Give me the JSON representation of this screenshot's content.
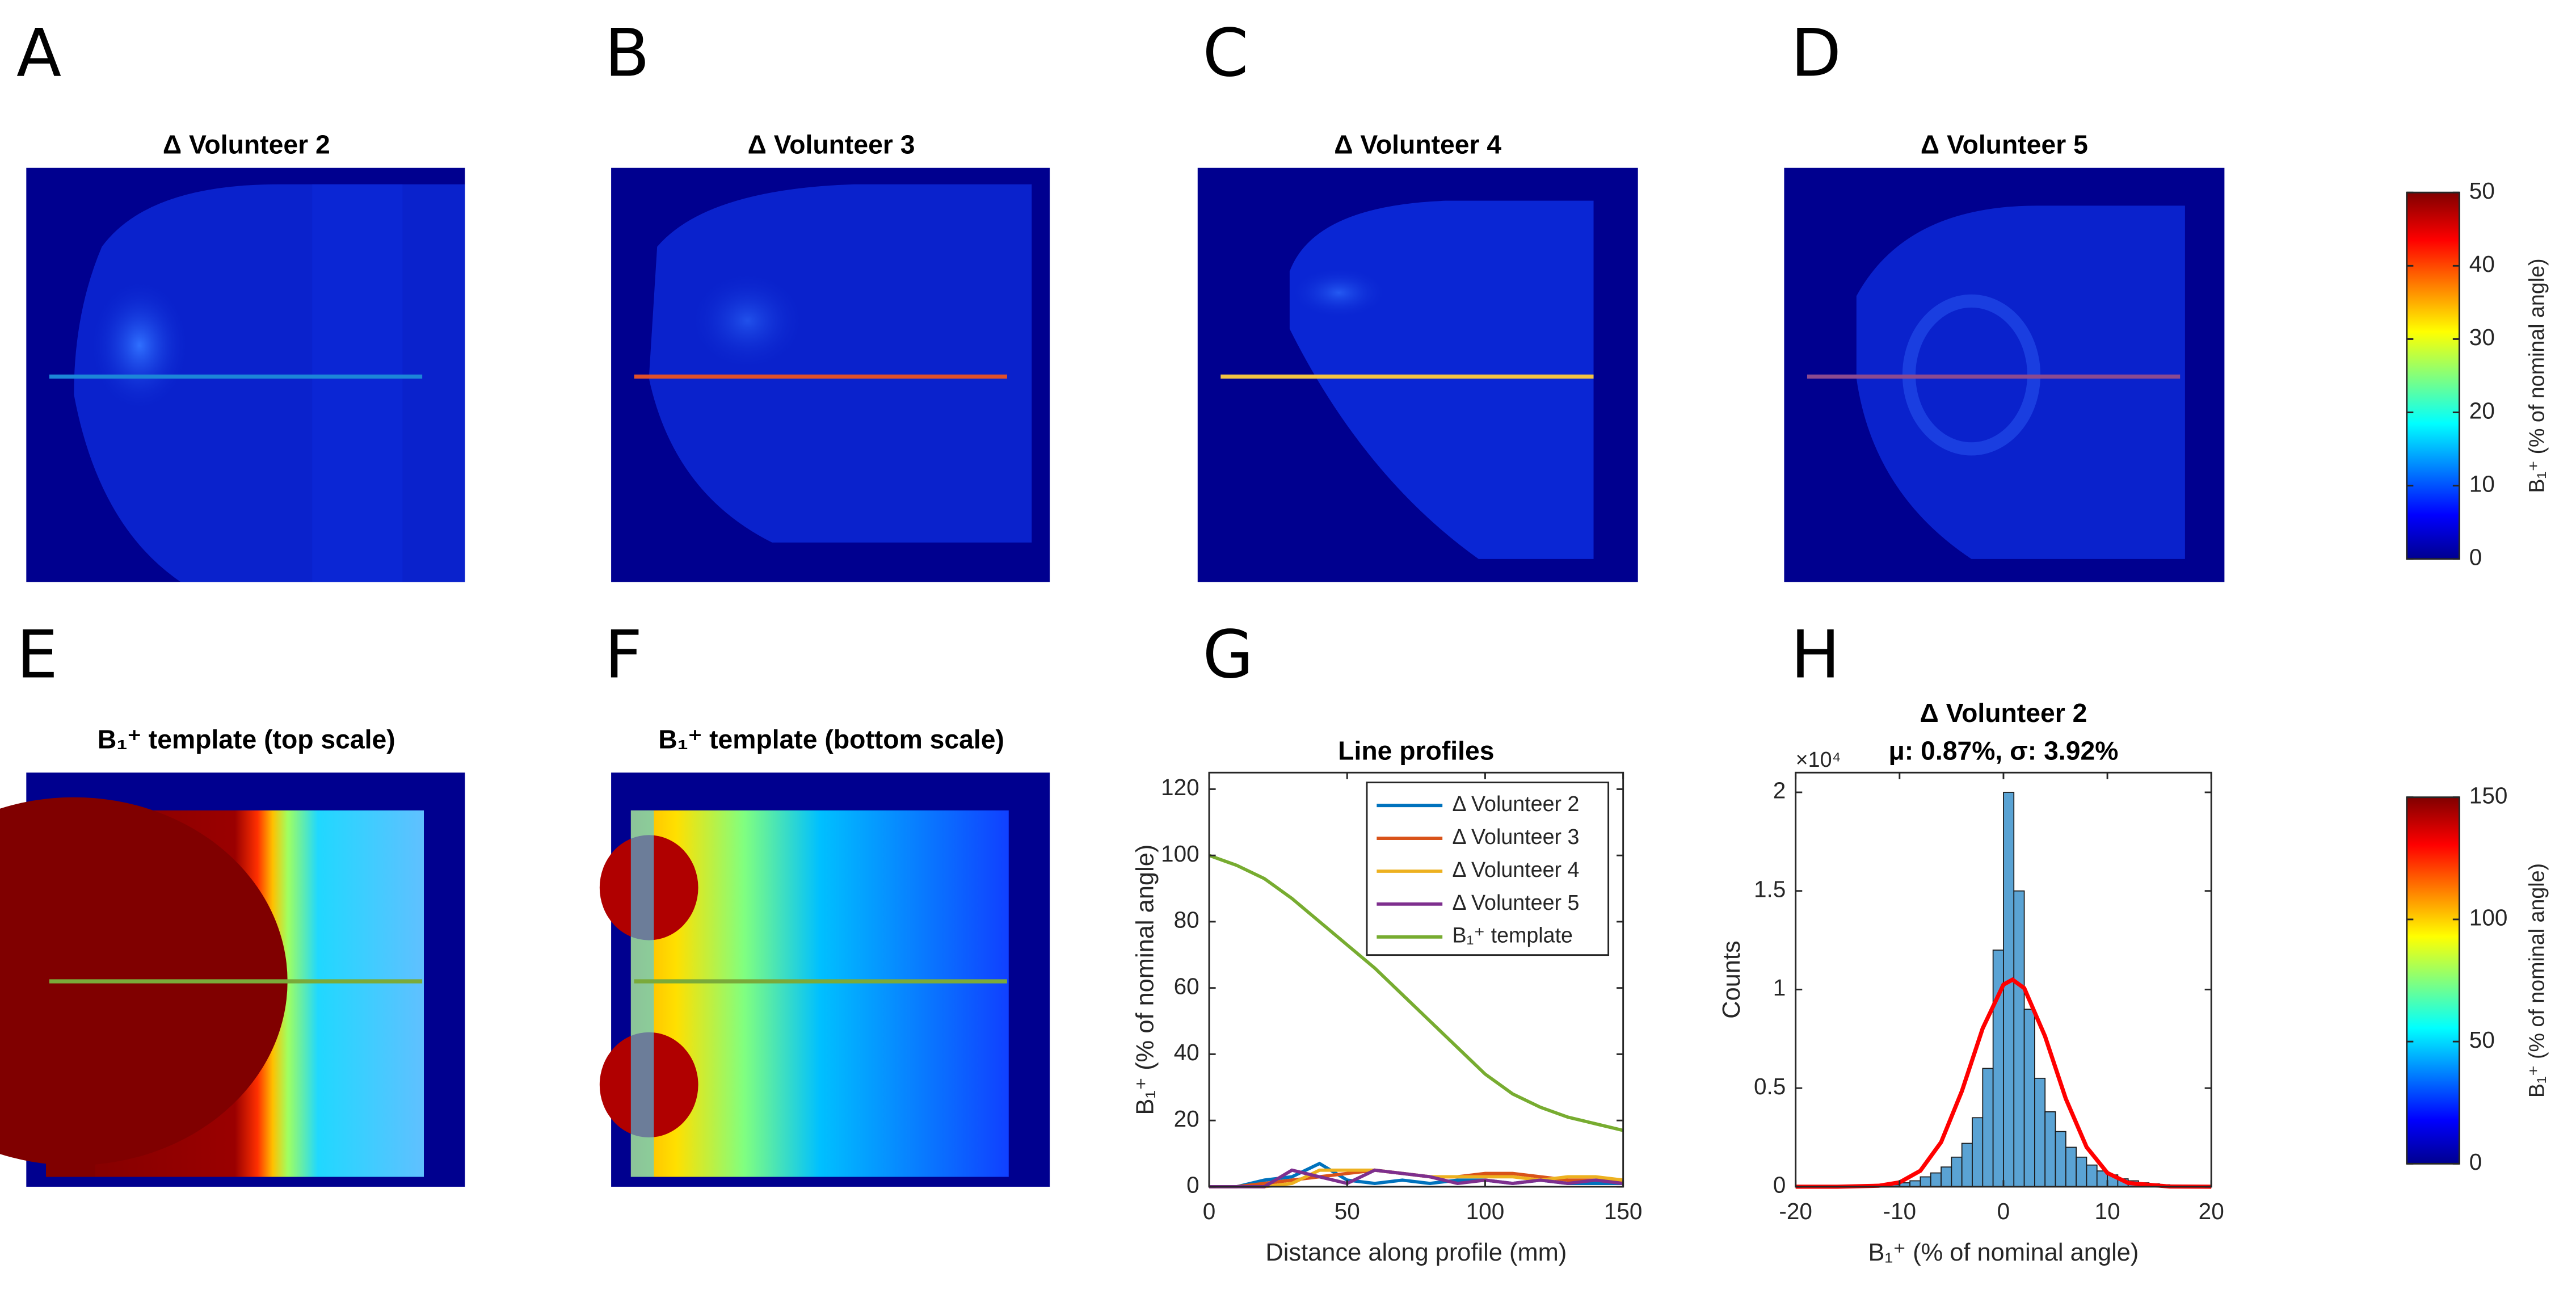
{
  "chart_data": [
    {
      "type": "image",
      "label": "A",
      "title": "Δ Volunteer 2"
    },
    {
      "type": "image",
      "label": "B",
      "title": "Δ Volunteer 3"
    },
    {
      "type": "image",
      "label": "C",
      "title": "Δ Volunteer 4"
    },
    {
      "type": "image",
      "label": "D",
      "title": "Δ Volunteer 5"
    },
    {
      "type": "image",
      "label": "E",
      "title": "B₁⁺ template (top scale)"
    },
    {
      "type": "image",
      "label": "F",
      "title": "B₁⁺ template (bottom scale)"
    },
    {
      "type": "line",
      "label": "G",
      "title": "Line profiles",
      "xlabel": "Distance along profile (mm)",
      "ylabel": "B₁⁺ (% of nominal angle)",
      "x": [
        0,
        10,
        20,
        30,
        40,
        50,
        60,
        70,
        80,
        90,
        100,
        110,
        120,
        130,
        140,
        150
      ],
      "series": [
        {
          "name": "Δ Volunteer 2",
          "color": "#0072bd",
          "values": [
            0,
            0,
            2,
            3,
            7,
            2,
            1,
            2,
            1,
            2,
            2,
            1,
            2,
            1,
            1,
            1
          ]
        },
        {
          "name": "Δ Volunteer 3",
          "color": "#d95319",
          "values": [
            0,
            0,
            1,
            2,
            3,
            4,
            5,
            4,
            3,
            3,
            4,
            4,
            3,
            2,
            2,
            2
          ]
        },
        {
          "name": "Δ Volunteer 4",
          "color": "#edb120",
          "values": [
            0,
            0,
            0,
            1,
            5,
            5,
            5,
            4,
            3,
            3,
            3,
            3,
            2,
            3,
            3,
            2
          ]
        },
        {
          "name": "Δ Volunteer 5",
          "color": "#7e2f8e",
          "values": [
            0,
            0,
            0,
            5,
            3,
            1,
            5,
            4,
            3,
            1,
            2,
            1,
            2,
            1,
            2,
            1
          ]
        },
        {
          "name": "B₁⁺ template",
          "color": "#77ac30",
          "values": [
            100,
            97,
            93,
            87,
            80,
            73,
            66,
            58,
            50,
            42,
            34,
            28,
            24,
            21,
            19,
            17
          ]
        }
      ],
      "xlim": [
        0,
        150
      ],
      "xticks": [
        0,
        50,
        100,
        150
      ],
      "ylim": [
        0,
        125
      ],
      "yticks": [
        0,
        20,
        40,
        60,
        80,
        100,
        120
      ],
      "legend": "northeast"
    },
    {
      "type": "histogram",
      "label": "H",
      "title": "Δ Volunteer 2",
      "subtitle": "μ: 0.87%, σ: 3.92%",
      "xlabel": "B₁⁺ (% of nominal angle)",
      "ylabel": "Counts",
      "y_exponent": "×10⁴",
      "bins": [
        -20,
        -19,
        -18,
        -17,
        -16,
        -15,
        -14,
        -13,
        -12,
        -11,
        -10,
        -9,
        -8,
        -7,
        -6,
        -5,
        -4,
        -3,
        -2,
        -1,
        0,
        1,
        2,
        3,
        4,
        5,
        6,
        7,
        8,
        9,
        10,
        11,
        12,
        13,
        14,
        15,
        16,
        17,
        18,
        19,
        20
      ],
      "counts": [
        0,
        0,
        0,
        0,
        0,
        0.002,
        0.003,
        0.005,
        0.008,
        0.01,
        0.02,
        0.03,
        0.05,
        0.07,
        0.1,
        0.15,
        0.22,
        0.35,
        0.6,
        1.2,
        2.0,
        1.5,
        0.9,
        0.55,
        0.38,
        0.28,
        0.2,
        0.15,
        0.11,
        0.08,
        0.06,
        0.04,
        0.03,
        0.02,
        0.015,
        0.01,
        0.007,
        0.005,
        0.003,
        0.002
      ],
      "color": "#5aa3d4",
      "fit_x": [
        -20,
        -16,
        -12,
        -10,
        -8,
        -6,
        -4,
        -2,
        0,
        0.87,
        2,
        4,
        6,
        8,
        10,
        12,
        16,
        20
      ],
      "fit_values": [
        0,
        0,
        0.005,
        0.022,
        0.081,
        0.226,
        0.485,
        0.803,
        1.025,
        1.05,
        1.007,
        0.763,
        0.446,
        0.201,
        0.07,
        0.019,
        0.001,
        0
      ],
      "fit_color": "#ff0000",
      "xlim": [
        -20,
        20
      ],
      "xticks": [
        -20,
        -10,
        0,
        10,
        20
      ],
      "ylim": [
        0,
        2.1
      ],
      "yticks": [
        0,
        0.5,
        1,
        1.5,
        2
      ]
    },
    {
      "type": "colorbar",
      "label": "B₁⁺ (% of nominal angle)",
      "ylim": [
        0,
        50
      ],
      "yticks": [
        0,
        10,
        20,
        30,
        40,
        50
      ]
    },
    {
      "type": "colorbar",
      "label": "B₁⁺ (% of nominal angle)",
      "ylim": [
        0,
        150
      ],
      "yticks": [
        0,
        50,
        100,
        150
      ]
    }
  ]
}
